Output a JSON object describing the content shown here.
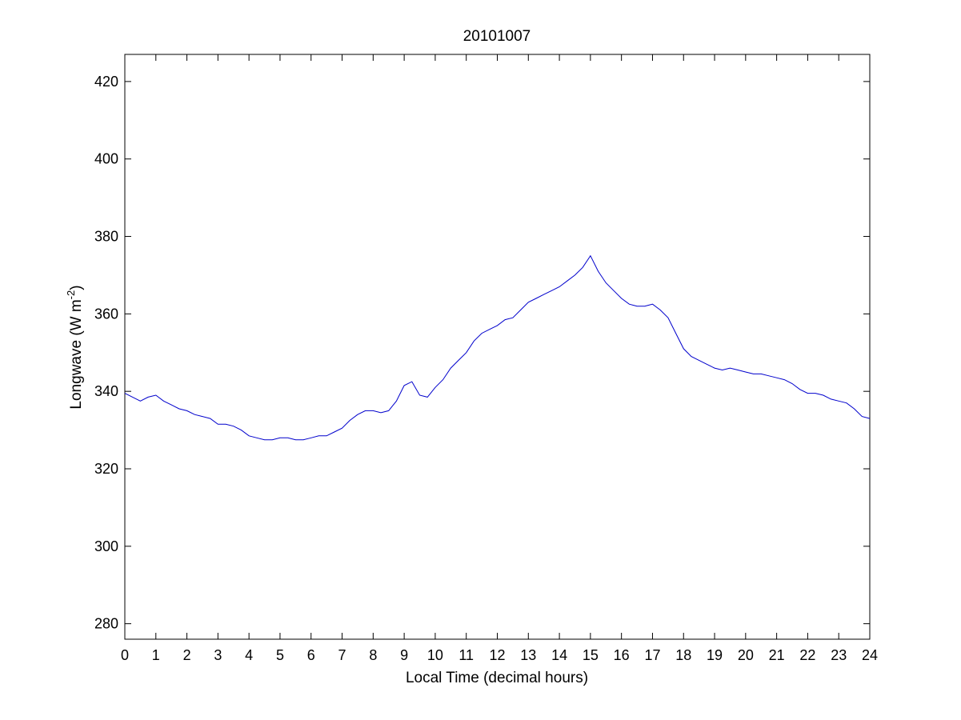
{
  "chart_data": {
    "type": "line",
    "title": "20101007",
    "xlabel": "Local Time (decimal hours)",
    "ylabel": "Longwave (W m",
    "ylabel_superscript": "-2",
    "ylabel_suffix": ")",
    "xlim": [
      0,
      24
    ],
    "ylim": [
      276,
      427
    ],
    "xticks": [
      0,
      1,
      2,
      3,
      4,
      5,
      6,
      7,
      8,
      9,
      10,
      11,
      12,
      13,
      14,
      15,
      16,
      17,
      18,
      19,
      20,
      21,
      22,
      23,
      24
    ],
    "yticks": [
      280,
      300,
      320,
      340,
      360,
      380,
      400,
      420
    ],
    "grid": false,
    "line_color": "#0000cc",
    "series": [
      {
        "x": [
          0,
          0.25,
          0.5,
          0.75,
          1,
          1.25,
          1.5,
          1.75,
          2,
          2.25,
          2.5,
          2.75,
          3,
          3.25,
          3.5,
          3.75,
          4,
          4.25,
          4.5,
          4.75,
          5,
          5.25,
          5.5,
          5.75,
          6,
          6.25,
          6.5,
          6.75,
          7,
          7.25,
          7.5,
          7.75,
          8,
          8.25,
          8.5,
          8.75,
          9,
          9.25,
          9.5,
          9.75,
          10,
          10.25,
          10.5,
          10.75,
          11,
          11.25,
          11.5,
          11.75,
          12,
          12.25,
          12.5,
          12.75,
          13,
          13.25,
          13.5,
          13.75,
          14,
          14.25,
          14.5,
          14.75,
          15,
          15.25,
          15.5,
          15.75,
          16,
          16.25,
          16.5,
          16.75,
          17,
          17.25,
          17.5,
          17.75,
          18,
          18.25,
          18.5,
          18.75,
          19,
          19.25,
          19.5,
          19.75,
          20,
          20.25,
          20.5,
          20.75,
          21,
          21.25,
          21.5,
          21.75,
          22,
          22.25,
          22.5,
          22.75,
          23,
          23.25,
          23.5,
          23.75,
          24
        ],
        "y": [
          339.5,
          338.5,
          337.5,
          338.5,
          339,
          337.5,
          336.5,
          335.5,
          335,
          334,
          333.5,
          333,
          331.5,
          331.5,
          331,
          330,
          328.5,
          328,
          327.5,
          327.5,
          328,
          328,
          327.5,
          327.5,
          328,
          328.5,
          328.5,
          329.5,
          330.5,
          332.5,
          334,
          335,
          335,
          334.5,
          335,
          337.5,
          341.5,
          342.5,
          339,
          338.5,
          341,
          343,
          346,
          348,
          350,
          353,
          355,
          356,
          357,
          358.5,
          359,
          361,
          363,
          364,
          365,
          366,
          367,
          368.5,
          370,
          372,
          375,
          371,
          368,
          366,
          364,
          362.5,
          362,
          362,
          362.5,
          361,
          359,
          355,
          351,
          349,
          348,
          347,
          346,
          345.5,
          346,
          345.5,
          345,
          344.5,
          344.5,
          344,
          343.5,
          343,
          342,
          340.5,
          339.5,
          339.5,
          339,
          338,
          337.5,
          337,
          335.5,
          333.5,
          333
        ]
      }
    ]
  }
}
